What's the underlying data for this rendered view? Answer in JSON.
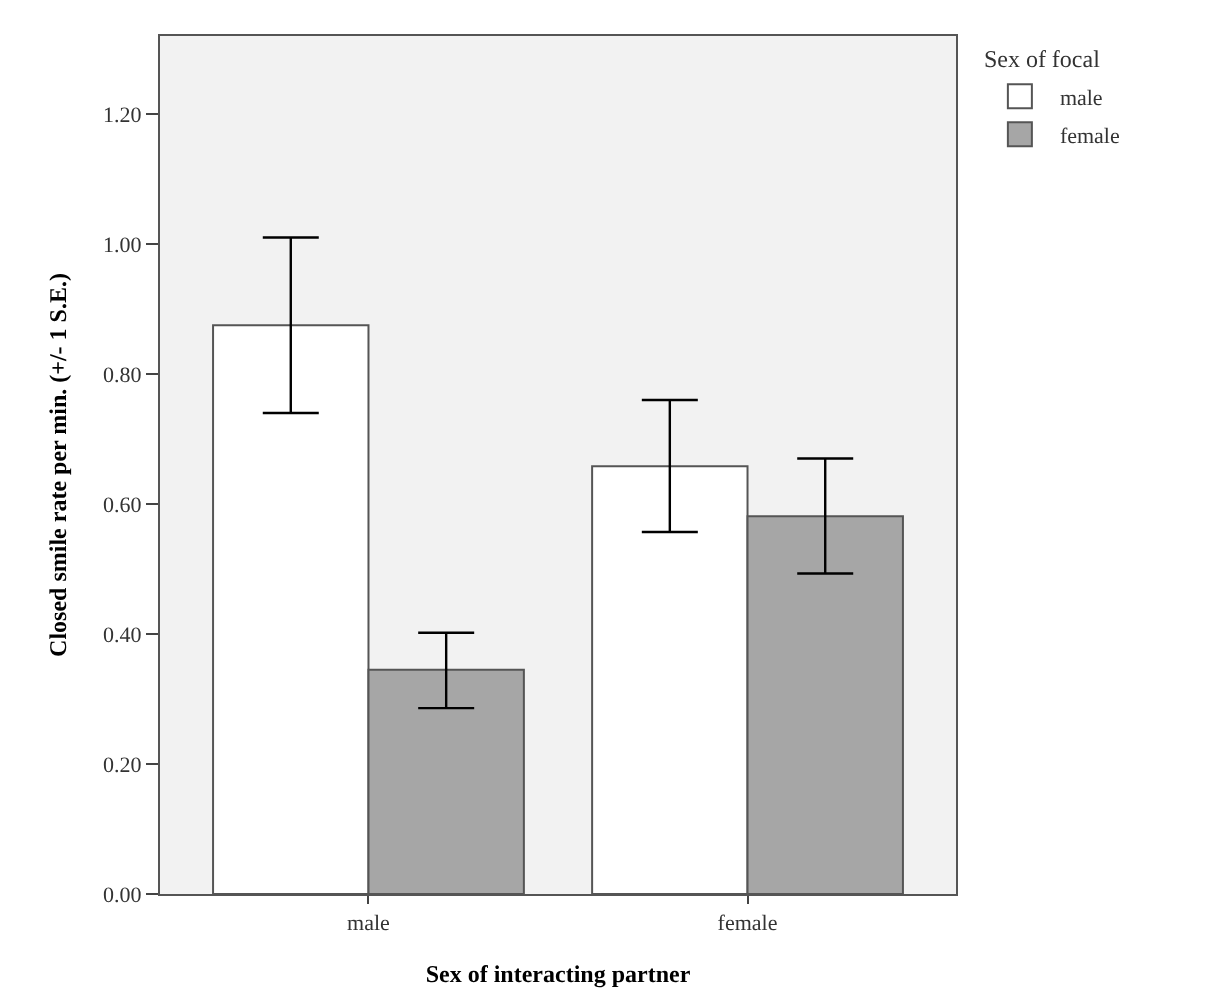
{
  "chart_data": {
    "type": "bar",
    "xlabel": "Sex of interacting partner",
    "ylabel": "Closed smile rate per min. (+/- 1 S.E.)",
    "legend_title": "Sex of focal",
    "categories": [
      "male",
      "female"
    ],
    "series": [
      {
        "name": "male",
        "color": "#ffffff",
        "values": [
          0.875,
          0.658
        ],
        "errors": [
          [
            0.74,
            1.01
          ],
          [
            0.557,
            0.76
          ]
        ]
      },
      {
        "name": "female",
        "color": "#a6a6a6",
        "values": [
          0.345,
          0.581
        ],
        "errors": [
          [
            0.286,
            0.402
          ],
          [
            0.493,
            0.67
          ]
        ]
      }
    ],
    "ylim": [
      0,
      1.32
    ],
    "yticks": [
      {
        "value": 0,
        "label": "0.00"
      },
      {
        "value": 0.2,
        "label": "0.20"
      },
      {
        "value": 0.4,
        "label": "0.40"
      },
      {
        "value": 0.6,
        "label": "0.60"
      },
      {
        "value": 0.8,
        "label": "0.80"
      },
      {
        "value": 1.0,
        "label": "1.00"
      },
      {
        "value": 1.2,
        "label": "1.20"
      }
    ],
    "grid": false,
    "legend": "top right"
  }
}
